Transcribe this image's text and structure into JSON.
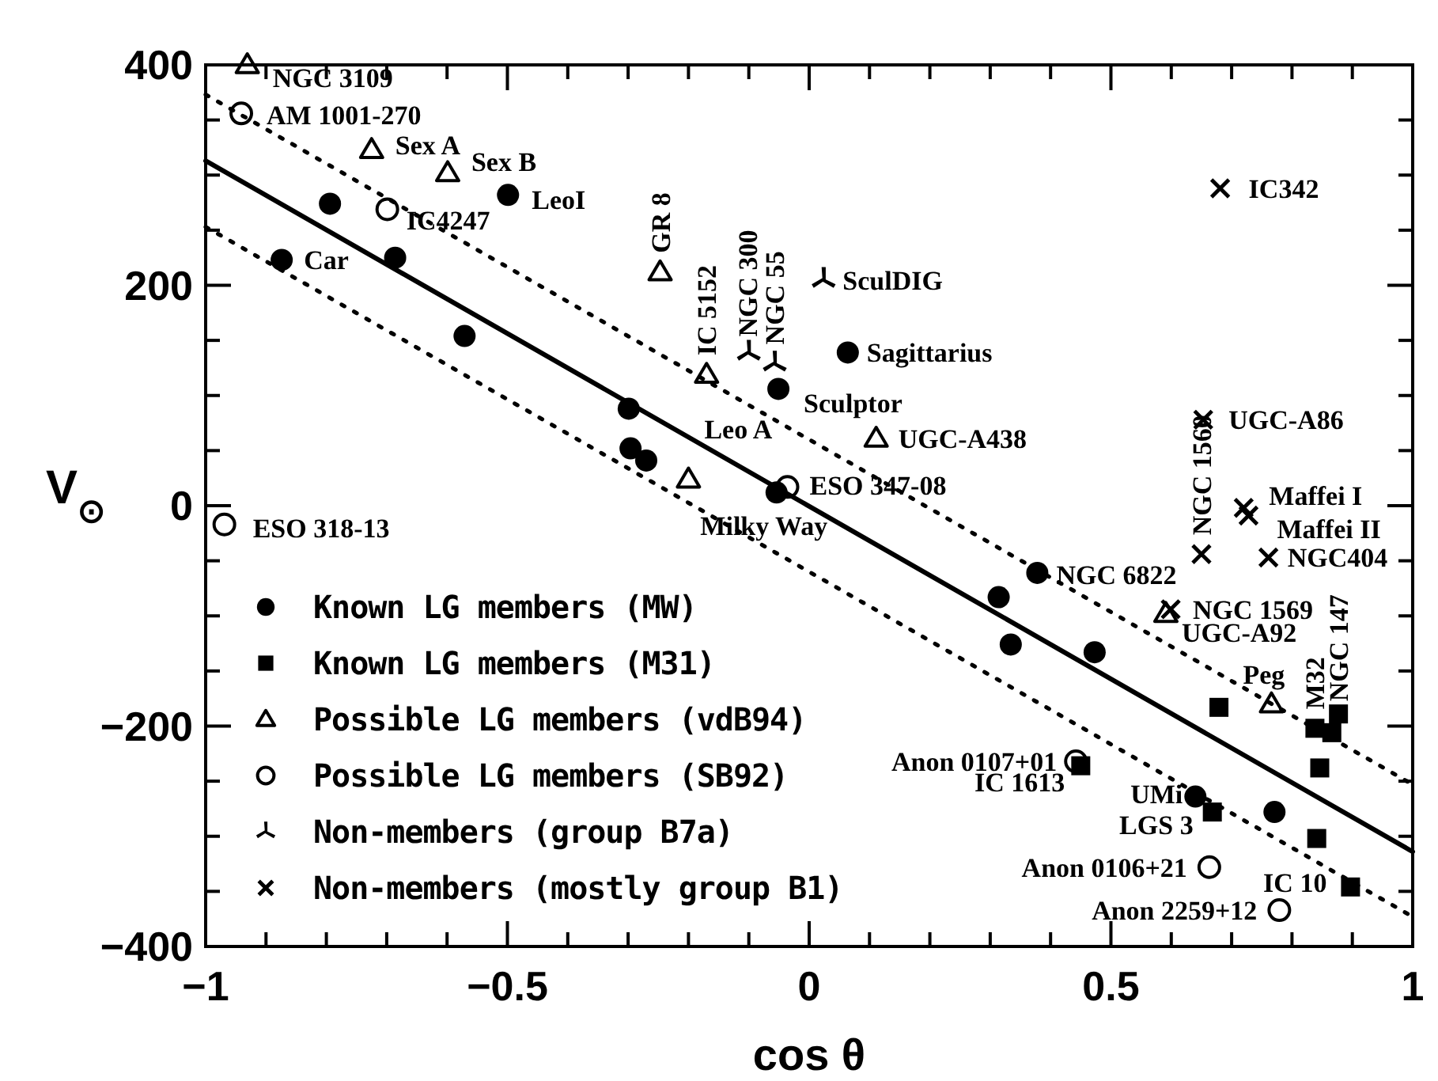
{
  "chart_data": {
    "type": "scatter",
    "xlabel": "cos θ",
    "ylabel": "V$_{⊙}$",
    "xlim": [
      -1,
      1
    ],
    "ylim": [
      -400,
      400
    ],
    "xticks": [
      -1,
      {
        "value": -0.9,
        "label": null
      },
      {
        "value": -0.8,
        "label": null
      },
      {
        "value": -0.7,
        "label": null
      },
      {
        "value": -0.6,
        "label": null
      },
      -0.5,
      {
        "value": -0.4,
        "label": null
      },
      {
        "value": -0.3,
        "label": null
      },
      {
        "value": -0.2,
        "label": null
      },
      {
        "value": -0.1,
        "label": null
      },
      0,
      {
        "value": 0.1,
        "label": null
      },
      {
        "value": 0.2,
        "label": null
      },
      {
        "value": 0.3,
        "label": null
      },
      {
        "value": 0.4,
        "label": null
      },
      0.5,
      {
        "value": 0.6,
        "label": null
      },
      {
        "value": 0.7,
        "label": null
      },
      {
        "value": 0.8,
        "label": null
      },
      {
        "value": 0.9,
        "label": null
      },
      1
    ],
    "yticks": [
      -400,
      {
        "value": -350,
        "label": null
      },
      {
        "value": -300,
        "label": null
      },
      {
        "value": -250,
        "label": null
      },
      -200,
      {
        "value": -150,
        "label": null
      },
      {
        "value": -100,
        "label": null
      },
      {
        "value": -50,
        "label": null
      },
      0,
      {
        "value": 50,
        "label": null
      },
      {
        "value": 100,
        "label": null
      },
      {
        "value": 150,
        "label": null
      },
      200,
      {
        "value": 250,
        "label": null
      },
      {
        "value": 300,
        "label": null
      },
      {
        "value": 350,
        "label": null
      },
      400
    ],
    "legend": "bottom left",
    "series": [
      {
        "type": "line",
        "color": "#000000",
        "line_style": "solid",
        "x": [
          -1,
          1
        ],
        "values": [
          313,
          -314
        ]
      },
      {
        "type": "line",
        "color": "#000000",
        "line_style": "dotted",
        "x": [
          -1,
          1
        ],
        "values": [
          373,
          -253
        ]
      },
      {
        "type": "line",
        "color": "#000000",
        "line_style": "dotted",
        "x": [
          -1,
          1
        ],
        "values": [
          253,
          -373
        ]
      },
      {
        "name": "Known LG members (MW)",
        "color": "#000000",
        "marker": "circle",
        "x": [
          -0.874,
          -0.794,
          -0.686,
          -0.499,
          -0.571,
          -0.299,
          -0.296,
          -0.27,
          -0.051,
          -0.054,
          0.064,
          0.378,
          0.314,
          0.334,
          0.473,
          0.64,
          0.771
        ],
        "values": [
          223,
          274,
          225,
          282,
          154,
          88,
          52,
          41,
          106,
          12,
          139,
          -61,
          -83,
          -126,
          -133,
          -264,
          -278
        ]
      },
      {
        "name": "Known LG members (M31)",
        "color": "#000000",
        "marker": "square",
        "x": [
          0.45,
          0.668,
          0.679,
          0.838,
          0.866,
          0.877,
          0.846,
          0.841,
          0.897
        ],
        "values": [
          -236,
          -278,
          -183,
          -202,
          -206,
          -189,
          -238,
          -302,
          -346
        ]
      },
      {
        "name": "Possible LG members (vdB94)",
        "color": "#000000",
        "marker": "triangle",
        "x": [
          -0.931,
          -0.725,
          -0.599,
          -0.247,
          -0.17,
          -0.2,
          0.111,
          0.591,
          0.766
        ],
        "values": [
          400,
          323,
          302,
          212,
          119,
          24,
          61,
          -98,
          -180
        ]
      },
      {
        "name": "Possible LG members (SB92)",
        "color": "#000000",
        "marker": "circle",
        "x": [
          -0.941,
          -0.699,
          -0.969,
          -0.036,
          0.442,
          0.663,
          0.779
        ],
        "values": [
          356,
          269,
          -17,
          17,
          -232,
          -328,
          -367
        ]
      },
      {
        "name": "Non-members (group B7a)",
        "color": "#000000",
        "marker": "star",
        "x": [
          -0.1,
          -0.057,
          0.024
        ],
        "values": [
          139,
          129,
          205
        ]
      },
      {
        "name": "Non-members (mostly group B1)",
        "color": "#000000",
        "marker": "cross",
        "x": [
          0.681,
          0.653,
          0.72,
          0.728,
          0.65,
          0.761,
          0.599
        ],
        "values": [
          288,
          78,
          -2,
          -9,
          -44,
          -47,
          -94
        ]
      }
    ],
    "annotations": [
      {
        "text": "NGC 3109",
        "x": -0.931,
        "y": 400
      },
      {
        "text": "AM 1001-270",
        "x": -0.941,
        "y": 356
      },
      {
        "text": "Sex A",
        "x": -0.725,
        "y": 323
      },
      {
        "text": "Sex B",
        "x": -0.599,
        "y": 302
      },
      {
        "text": "LeoI",
        "x": -0.499,
        "y": 282
      },
      {
        "text": "IC4247",
        "x": -0.699,
        "y": 269
      },
      {
        "text": "Car",
        "x": -0.874,
        "y": 223
      },
      {
        "text": "GR 8",
        "x": -0.247,
        "y": 212
      },
      {
        "text": "IC 5152",
        "x": -0.17,
        "y": 119
      },
      {
        "text": "NGC 300",
        "x": -0.1,
        "y": 139
      },
      {
        "text": "NGC 55",
        "x": -0.057,
        "y": 129
      },
      {
        "text": "SculDIG",
        "x": 0.024,
        "y": 205
      },
      {
        "text": "Sagittarius",
        "x": 0.064,
        "y": 139
      },
      {
        "text": "Sculptor",
        "x": -0.051,
        "y": 106
      },
      {
        "text": "UGC-A438",
        "x": 0.111,
        "y": 61
      },
      {
        "text": "Leo A",
        "x": -0.2,
        "y": 24
      },
      {
        "text": "ESO 347-08",
        "x": -0.036,
        "y": 17
      },
      {
        "text": "Milky Way",
        "x": -0.054,
        "y": 12
      },
      {
        "text": "ESO 318-13",
        "x": -0.969,
        "y": -17
      },
      {
        "text": "IC342",
        "x": 0.681,
        "y": 288
      },
      {
        "text": "UGC-A86",
        "x": 0.653,
        "y": 78
      },
      {
        "text": "Maffei I",
        "x": 0.72,
        "y": -2
      },
      {
        "text": "Maffei II",
        "x": 0.728,
        "y": -9
      },
      {
        "text": "NGC 1560",
        "x": 0.65,
        "y": -44
      },
      {
        "text": "NGC404",
        "x": 0.761,
        "y": -47
      },
      {
        "text": "NGC 6822",
        "x": 0.378,
        "y": -61
      },
      {
        "text": "NGC 1569",
        "x": 0.599,
        "y": -94
      },
      {
        "text": "UGC-A92",
        "x": 0.591,
        "y": -98
      },
      {
        "text": "Peg",
        "x": 0.766,
        "y": -180
      },
      {
        "text": "M32",
        "x": 0.838,
        "y": -202
      },
      {
        "text": "NGC 147",
        "x": 0.877,
        "y": -189
      },
      {
        "text": "Anon 0107+01",
        "x": 0.442,
        "y": -232
      },
      {
        "text": "IC 1613",
        "x": 0.45,
        "y": -236
      },
      {
        "text": "UMi",
        "x": 0.64,
        "y": -264
      },
      {
        "text": "LGS 3",
        "x": 0.668,
        "y": -278
      },
      {
        "text": "Anon 0106+21",
        "x": 0.663,
        "y": -328
      },
      {
        "text": "IC 10",
        "x": 0.897,
        "y": -346
      },
      {
        "text": "Anon 2259+12",
        "x": 0.779,
        "y": -367
      }
    ]
  }
}
